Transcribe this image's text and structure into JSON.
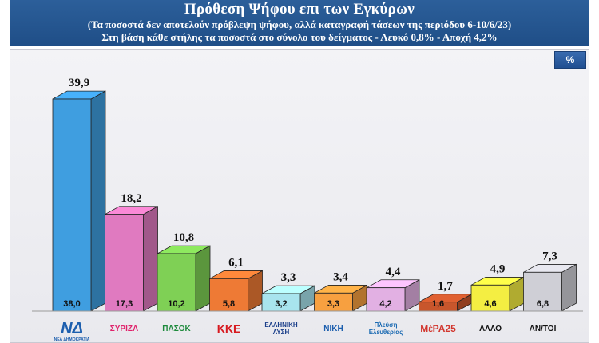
{
  "header": {
    "title": "Πρόθεση Ψήφου επι των Εγκύρων",
    "subtitle1": "(Τα ποσοστά δεν αποτελούν πρόβλεψη ψήφου, αλλά καταγραφή τάσεων της περιόδου  6-10/6/23)",
    "subtitle2": "Στη βάση κάθε στήλης τα ποσοστά στο σύνολο του δείγματος - Λευκό 0,8% - Αποχή 4,2%"
  },
  "badge": "%",
  "chart_data": {
    "type": "bar",
    "title": "Πρόθεση Ψήφου επι των Εγκύρων",
    "categories": [
      "ΝΔ",
      "ΣΥΡΙΖΑ",
      "ΠΑΣΟΚ",
      "ΚΚΕ",
      "ΕΛΛΗΝΙΚΗ ΛΥΣΗ",
      "ΝΙΚΗ",
      "Πλεύση Ελευθερίας",
      "ΜέΡΑ25",
      "ΑΛΛΟ",
      "ΑΝ/ΤΟΙ"
    ],
    "series": [
      {
        "values": [
          39.9,
          18.2,
          10.8,
          6.1,
          3.3,
          3.4,
          4.4,
          1.7,
          4.9,
          7.3
        ]
      },
      {
        "values": [
          38.0,
          17.3,
          10.2,
          5.8,
          3.2,
          3.3,
          4.2,
          1.6,
          4.6,
          6.8
        ]
      }
    ],
    "top_labels": [
      "39,9",
      "18,2",
      "10,8",
      "6,1",
      "3,3",
      "3,4",
      "4,4",
      "1,7",
      "4,9",
      "7,3"
    ],
    "base_labels": [
      "38,0",
      "17,3",
      "10,2",
      "5,8",
      "3,2",
      "3,3",
      "4,2",
      "1,6",
      "4,6",
      "6,8"
    ],
    "colors": [
      "#3f9ee0",
      "#e07ac0",
      "#7fd055",
      "#ee7a35",
      "#a8e4ee",
      "#f7a040",
      "#e2b0e3",
      "#c8562c",
      "#f4ee42",
      "#cfcfd6"
    ],
    "ylim": [
      0,
      42
    ],
    "grid": false
  },
  "logos": [
    {
      "text": "ΝΔ",
      "sub": "ΝΕΑ ΔΗΜΟΚΡΑΤΙΑ",
      "color": "#1d5fae"
    },
    {
      "text": "ΣΥΡΙΖΑ",
      "sub": "",
      "color": "#e0226b"
    },
    {
      "text": "ΠΑΣΟΚ",
      "sub": "",
      "color": "#1d8a3c"
    },
    {
      "text": "ΚΚΕ",
      "sub": "",
      "color": "#d7191f"
    },
    {
      "text": "ΕΛΛΗΝΙΚΗ ΛΥΣΗ",
      "sub": "",
      "color": "#1b3f8a"
    },
    {
      "text": "ΝΙΚΗ",
      "sub": "",
      "color": "#1d5fae"
    },
    {
      "text": "Πλεύση Ελευθερίας",
      "sub": "",
      "color": "#1b6ab2"
    },
    {
      "text": "ΜέΡΑ25",
      "sub": "",
      "color": "#d2362e"
    },
    {
      "text": "ΑΛΛΟ",
      "sub": "",
      "color": "#111111"
    },
    {
      "text": "ΑΝ/ΤΟΙ",
      "sub": "",
      "color": "#111111"
    }
  ]
}
